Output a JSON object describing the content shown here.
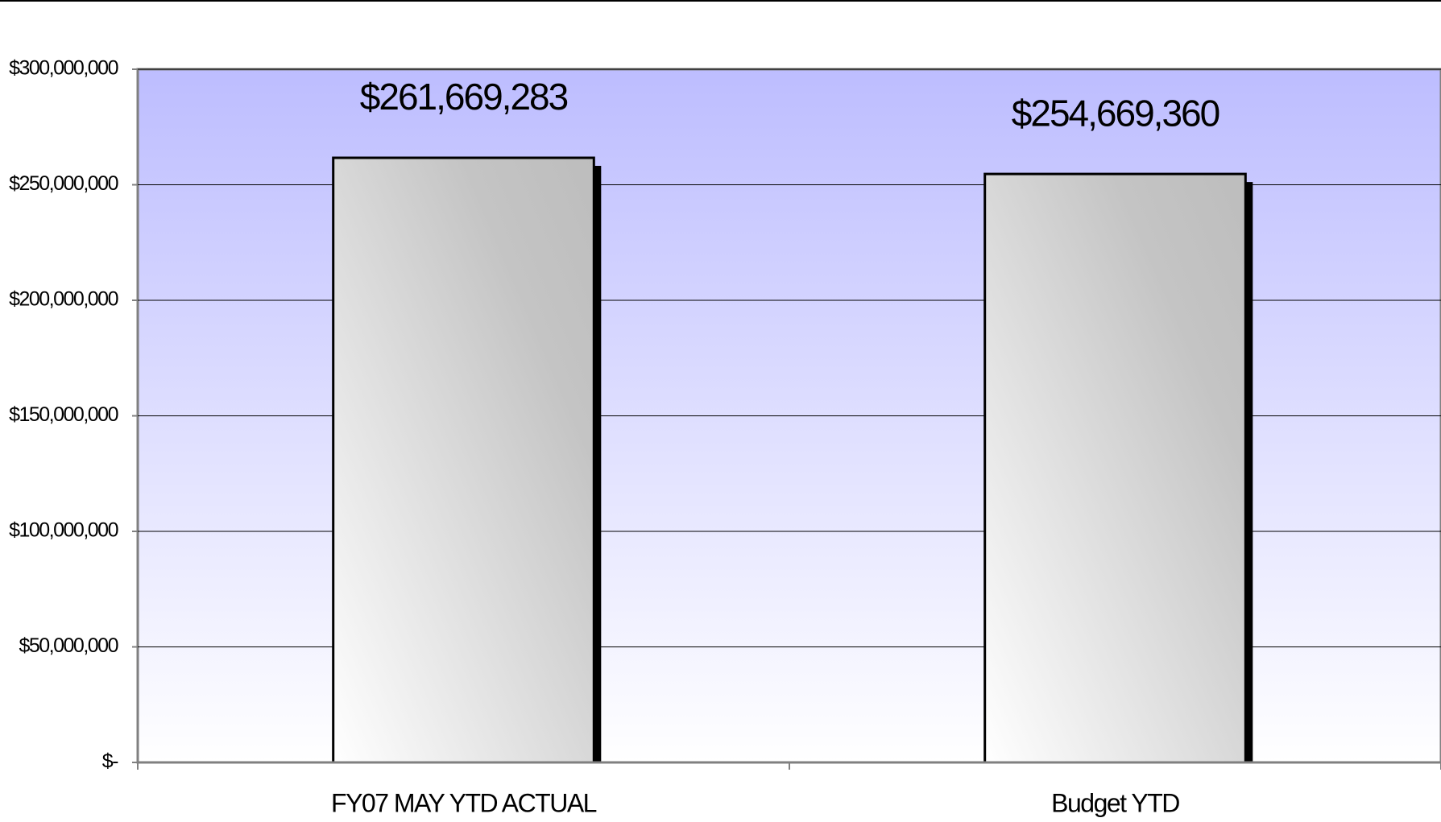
{
  "chart_data": {
    "type": "bar",
    "categories": [
      "FY07 MAY YTD ACTUAL",
      "Budget YTD"
    ],
    "values": [
      261669283,
      254669360
    ],
    "value_labels": [
      "$261,669,283",
      "$254,669,360"
    ],
    "ylim": [
      0,
      300000000
    ],
    "yticks": [
      {
        "value": 0,
        "label": "$-"
      },
      {
        "value": 50000000,
        "label": "$50,000,000"
      },
      {
        "value": 100000000,
        "label": "$100,000,000"
      },
      {
        "value": 150000000,
        "label": "$150,000,000"
      },
      {
        "value": 200000000,
        "label": "$200,000,000"
      },
      {
        "value": 250000000,
        "label": "$250,000,000"
      },
      {
        "value": 300000000,
        "label": "$300,000,000"
      }
    ],
    "grid": true
  }
}
